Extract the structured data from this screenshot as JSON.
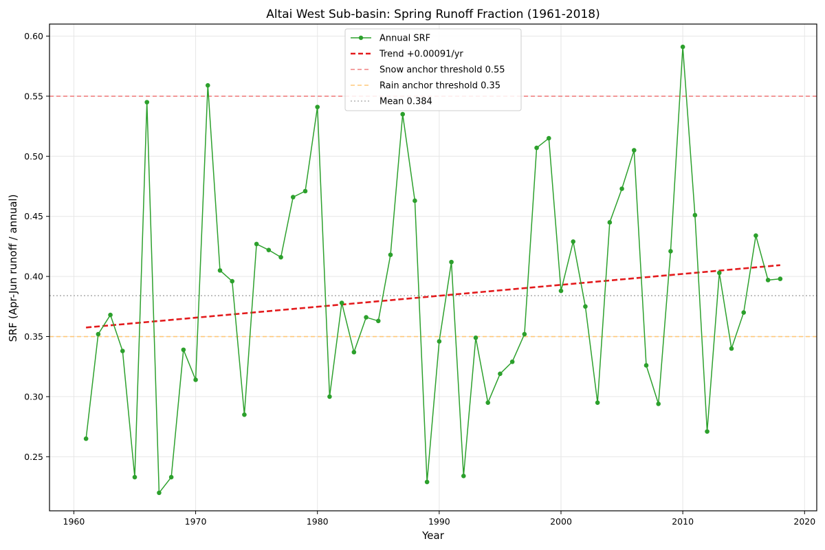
{
  "chart_data": {
    "type": "line",
    "title": "Altai West Sub-basin: Spring Runoff Fraction (1961-2018)",
    "xlabel": "Year",
    "ylabel": "SRF (Apr-Jun runoff / annual)",
    "xlim": [
      1958,
      2021
    ],
    "ylim": [
      0.205,
      0.61
    ],
    "xticks": [
      1960,
      1970,
      1980,
      1990,
      2000,
      2010,
      2020
    ],
    "yticks": [
      0.25,
      0.3,
      0.35,
      0.4,
      0.45,
      0.5,
      0.55,
      0.6
    ],
    "grid": true,
    "legend_position": "upper-center",
    "series": [
      {
        "name": "Annual SRF",
        "color": "#2ca02c",
        "x": [
          1961,
          1962,
          1963,
          1964,
          1965,
          1966,
          1967,
          1968,
          1969,
          1970,
          1971,
          1972,
          1973,
          1974,
          1975,
          1976,
          1977,
          1978,
          1979,
          1980,
          1981,
          1982,
          1983,
          1984,
          1985,
          1986,
          1987,
          1988,
          1989,
          1990,
          1991,
          1992,
          1993,
          1994,
          1995,
          1996,
          1997,
          1998,
          1999,
          2000,
          2001,
          2002,
          2003,
          2004,
          2005,
          2006,
          2007,
          2008,
          2009,
          2010,
          2011,
          2012,
          2013,
          2014,
          2015,
          2016,
          2017,
          2018
        ],
        "values": [
          0.265,
          0.352,
          0.368,
          0.338,
          0.233,
          0.545,
          0.22,
          0.233,
          0.339,
          0.314,
          0.559,
          0.405,
          0.396,
          0.285,
          0.427,
          0.422,
          0.416,
          0.466,
          0.471,
          0.541,
          0.3,
          0.378,
          0.337,
          0.366,
          0.363,
          0.418,
          0.535,
          0.463,
          0.229,
          0.346,
          0.412,
          0.234,
          0.349,
          0.295,
          0.319,
          0.329,
          0.352,
          0.507,
          0.515,
          0.388,
          0.429,
          0.375,
          0.295,
          0.445,
          0.473,
          0.505,
          0.326,
          0.294,
          0.421,
          0.591,
          0.451,
          0.271,
          0.403,
          0.34,
          0.37,
          0.434,
          0.397,
          0.398
        ]
      }
    ],
    "trend": {
      "label": "Trend +0.00091/yr",
      "color": "#e31a1c",
      "x": [
        1961,
        2018
      ],
      "values": [
        0.3575,
        0.4094
      ]
    },
    "reference_lines": [
      {
        "label": "Snow anchor threshold 0.55",
        "value": 0.55,
        "color": "#f08080",
        "style": "dashed"
      },
      {
        "label": "Rain anchor threshold 0.35",
        "value": 0.35,
        "color": "#ffc87a",
        "style": "dashed"
      },
      {
        "label": "Mean 0.384",
        "value": 0.384,
        "color": "#b0b0b0",
        "style": "dotted"
      }
    ]
  }
}
